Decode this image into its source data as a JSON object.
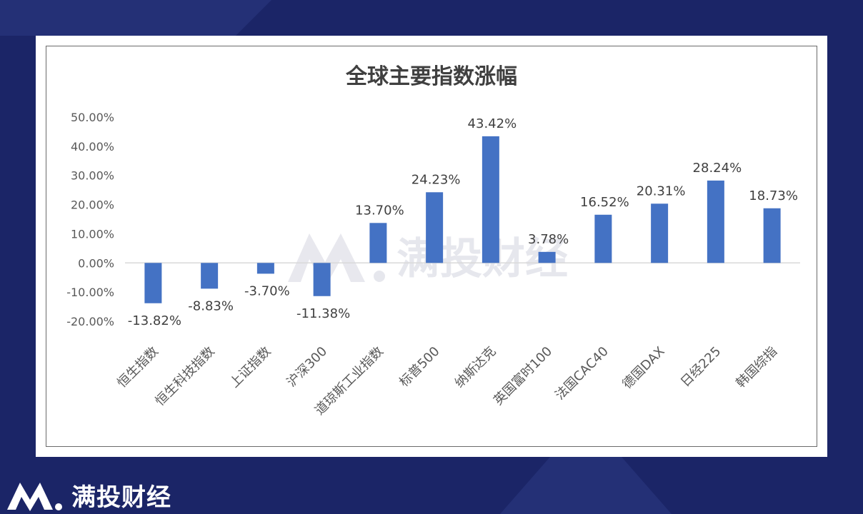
{
  "brand": {
    "name": "满投财经",
    "logo_icon": "mountain-m-logo-icon"
  },
  "watermark": {
    "text": "满投财经",
    "icon": "mountain-m-logo-icon"
  },
  "colors": {
    "background": "#1b2567",
    "bar": "#4472c4",
    "axis_text": "#595959"
  },
  "chart_data": {
    "type": "bar",
    "title": "全球主要指数涨幅",
    "categories": [
      "恒生指数",
      "恒生科技指数",
      "上证指数",
      "沪深300",
      "道琼斯工业指数",
      "标普500",
      "纳斯达克",
      "英国富时100",
      "法国CAC40",
      "德国DAX",
      "日经225",
      "韩国综指"
    ],
    "values": [
      -13.82,
      -8.83,
      -3.7,
      -11.38,
      13.7,
      24.23,
      43.42,
      3.78,
      16.52,
      20.31,
      28.24,
      18.73
    ],
    "data_labels": [
      "-13.82%",
      "-8.83%",
      "-3.70%",
      "-11.38%",
      "13.70%",
      "24.23%",
      "43.42%",
      "3.78%",
      "16.52%",
      "20.31%",
      "28.24%",
      "18.73%"
    ],
    "y_ticks": [
      "-20.00%",
      "-10.00%",
      "0.00%",
      "10.00%",
      "20.00%",
      "30.00%",
      "40.00%",
      "50.00%"
    ],
    "y_tick_values": [
      -20,
      -10,
      0,
      10,
      20,
      30,
      40,
      50
    ],
    "ylim": [
      -20,
      50
    ],
    "grid": false,
    "legend": "none",
    "xlabel": "",
    "ylabel": ""
  }
}
